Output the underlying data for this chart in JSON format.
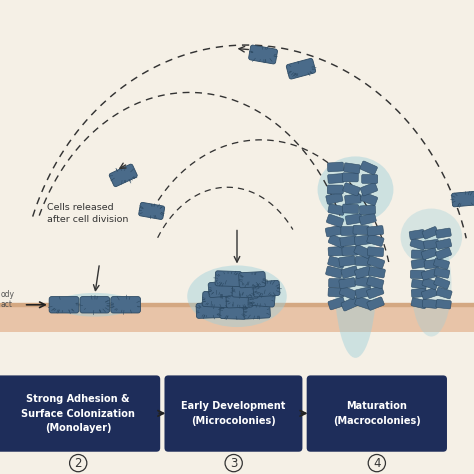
{
  "bg_color": "#f5f0e6",
  "surface_color_top": "#e8c4a8",
  "surface_color_bot": "#f0d4b8",
  "bacterium_fill": "#4a6b8a",
  "bacterium_edge": "#2d4a63",
  "bacterium_fill_light": "#6a8faa",
  "biofilm_halo": "#9ecfda",
  "biofilm_halo_alpha": 0.45,
  "box_color": "#1e2d5a",
  "box_text_color": "#ffffff",
  "arrow_color": "#222222",
  "dashed_color": "#333333",
  "annotation_color": "#333333",
  "box_labels": [
    "Strong Adhesion &\nSurface Colonization\n(Monolayer)",
    "Early Development\n(Microcolonies)",
    "Maturation\n(Macrocolonies)"
  ],
  "box_numbers": [
    "2",
    "3",
    "4"
  ],
  "annotation_text": "Cells released\nafter cell division"
}
